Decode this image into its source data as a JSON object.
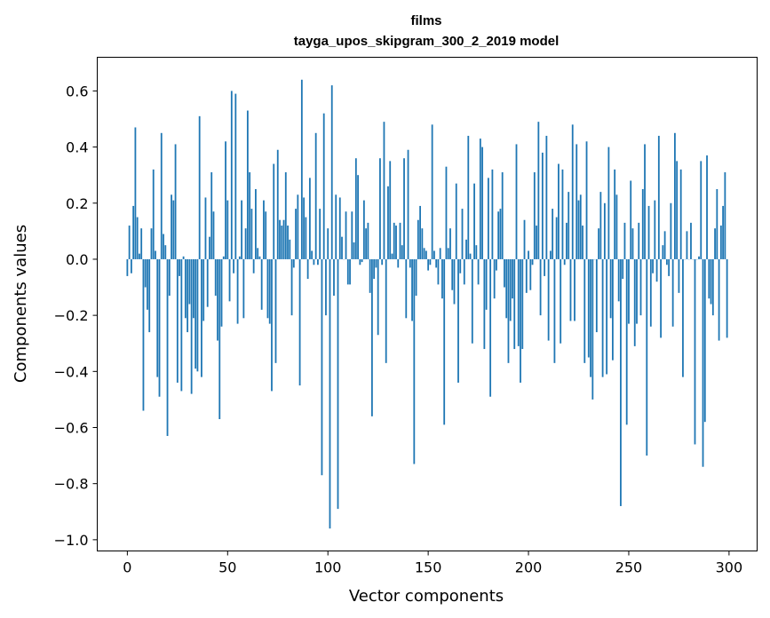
{
  "chart_data": {
    "type": "bar",
    "title": "films",
    "subtitle": "tayga_upos_skipgram_300_2_2019 model",
    "xlabel": "Vector components",
    "ylabel": "Components values",
    "xlim": [
      -15,
      314
    ],
    "ylim": [
      -1.04,
      0.72
    ],
    "xticks": [
      0,
      50,
      100,
      150,
      200,
      250,
      300
    ],
    "yticks": [
      -1.0,
      -0.8,
      -0.6,
      -0.4,
      -0.2,
      0.0,
      0.2,
      0.4,
      0.6
    ],
    "ytick_labels": [
      "−1.0",
      "−0.8",
      "−0.6",
      "−0.4",
      "−0.2",
      "0.0",
      "0.2",
      "0.4",
      "0.6"
    ],
    "grid": false,
    "color": "#1f77b4",
    "values": [
      -0.06,
      0.12,
      -0.05,
      0.19,
      0.47,
      0.15,
      0.02,
      0.11,
      -0.54,
      -0.1,
      -0.18,
      -0.26,
      0.11,
      0.32,
      0.03,
      -0.42,
      -0.49,
      0.45,
      0.09,
      0.05,
      -0.63,
      -0.13,
      0.23,
      0.21,
      0.41,
      -0.44,
      -0.06,
      -0.47,
      0.01,
      -0.21,
      -0.26,
      -0.16,
      -0.48,
      -0.21,
      -0.39,
      -0.4,
      0.51,
      -0.42,
      -0.22,
      0.22,
      -0.17,
      0.08,
      0.31,
      0.17,
      -0.13,
      -0.29,
      -0.57,
      -0.24,
      0.01,
      0.42,
      0.21,
      -0.15,
      0.6,
      -0.05,
      0.59,
      -0.23,
      0.01,
      0.21,
      -0.21,
      0.11,
      0.53,
      0.31,
      0.18,
      -0.05,
      0.25,
      0.04,
      0.01,
      -0.18,
      0.21,
      0.17,
      -0.21,
      -0.23,
      -0.47,
      0.34,
      -0.37,
      0.39,
      0.14,
      0.12,
      0.14,
      0.31,
      0.12,
      0.07,
      -0.2,
      -0.03,
      0.18,
      0.23,
      -0.45,
      0.64,
      0.22,
      0.15,
      -0.07,
      0.29,
      0.03,
      -0.02,
      0.45,
      -0.02,
      0.18,
      -0.77,
      0.52,
      -0.2,
      0.11,
      -0.96,
      0.62,
      -0.13,
      0.23,
      -0.89,
      0.22,
      0.08,
      0.0,
      0.17,
      -0.09,
      -0.09,
      0.17,
      0.06,
      0.36,
      0.3,
      -0.02,
      -0.01,
      0.21,
      0.11,
      0.13,
      -0.12,
      -0.56,
      -0.07,
      -0.03,
      -0.27,
      0.36,
      -0.02,
      0.49,
      -0.37,
      0.26,
      0.35,
      0.02,
      0.13,
      0.12,
      -0.03,
      0.13,
      0.05,
      0.36,
      -0.21,
      0.39,
      -0.03,
      -0.22,
      -0.73,
      -0.13,
      0.14,
      0.19,
      0.11,
      0.04,
      0.03,
      -0.04,
      -0.02,
      0.48,
      0.03,
      -0.03,
      -0.09,
      0.04,
      -0.14,
      -0.59,
      0.33,
      0.04,
      0.11,
      -0.11,
      -0.16,
      0.27,
      -0.44,
      -0.05,
      0.18,
      -0.09,
      0.07,
      0.44,
      0.02,
      -0.3,
      0.27,
      0.05,
      -0.09,
      0.43,
      0.4,
      -0.32,
      -0.18,
      0.29,
      -0.49,
      0.32,
      -0.14,
      -0.04,
      0.17,
      0.18,
      0.31,
      -0.1,
      -0.21,
      -0.37,
      -0.22,
      -0.14,
      -0.32,
      0.41,
      -0.31,
      -0.44,
      -0.32,
      0.14,
      -0.12,
      0.03,
      -0.11,
      -0.02,
      0.31,
      0.12,
      0.49,
      -0.2,
      0.38,
      -0.06,
      0.44,
      -0.29,
      0.03,
      0.18,
      -0.37,
      0.15,
      0.34,
      -0.3,
      0.32,
      -0.02,
      0.13,
      0.24,
      -0.22,
      0.48,
      -0.22,
      0.41,
      0.21,
      0.23,
      0.12,
      -0.37,
      0.42,
      -0.35,
      -0.42,
      -0.5,
      0.0,
      -0.26,
      0.11,
      0.24,
      -0.42,
      0.2,
      -0.41,
      0.4,
      -0.21,
      -0.36,
      0.32,
      0.23,
      -0.15,
      -0.88,
      -0.07,
      0.13,
      -0.59,
      -0.23,
      0.28,
      0.11,
      -0.31,
      -0.23,
      0.13,
      -0.2,
      0.25,
      0.41,
      -0.7,
      0.19,
      -0.24,
      -0.05,
      0.21,
      -0.08,
      0.44,
      -0.28,
      0.05,
      0.1,
      -0.02,
      -0.06,
      0.2,
      -0.24,
      0.45,
      0.35,
      -0.12,
      0.32,
      -0.42,
      0.0,
      0.1,
      0.0,
      0.13,
      0.0,
      -0.66,
      0.0,
      0.01,
      0.35,
      -0.74,
      -0.58,
      0.37,
      -0.14,
      -0.16,
      -0.2,
      0.11,
      0.25,
      -0.29,
      0.12,
      0.19,
      0.31,
      -0.28
    ]
  }
}
